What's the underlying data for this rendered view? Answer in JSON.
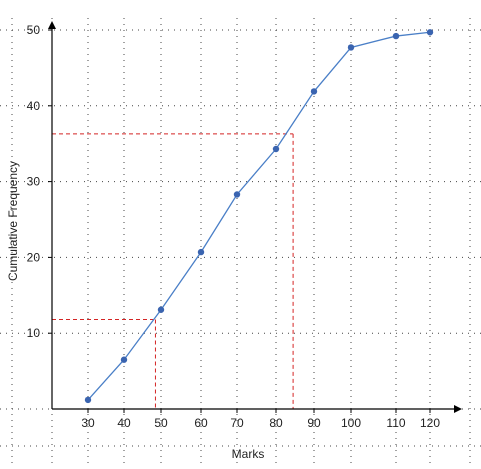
{
  "chart_data": {
    "type": "line",
    "title": "",
    "xlabel": "Marks",
    "ylabel": "Cumulative Frequency",
    "x_ticks": [
      "30",
      "40",
      "50",
      "60",
      "70",
      "80",
      "90",
      "100",
      "110",
      "120"
    ],
    "y_ticks": [
      "10",
      "20",
      "30",
      "40",
      "50"
    ],
    "y_tick_values": [
      10,
      20,
      30,
      40,
      50
    ],
    "ylim": [
      0,
      50
    ],
    "grid": "dotted",
    "series": [
      {
        "name": "",
        "x": [
          30,
          40,
          50,
          60,
          70,
          80,
          90,
          100,
          110,
          120
        ],
        "y": [
          1.2,
          6.5,
          13.1,
          20.7,
          28.3,
          34.3,
          41.9,
          47.7,
          49.2,
          49.7
        ]
      }
    ],
    "reference_lines": [
      {
        "x": 48.5,
        "y": 11.8
      },
      {
        "x": 84.5,
        "y": 36.3
      }
    ],
    "colors": {
      "line": "#4a7fc7",
      "marker": "#3a64b0",
      "reference": "#d42424",
      "grid": "#444444",
      "axis": "#000000"
    }
  }
}
